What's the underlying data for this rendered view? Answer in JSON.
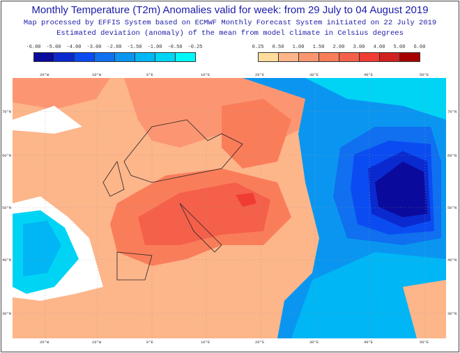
{
  "title": "Monthly Temperature (T2m) Anomalies valid for week: from 29 July to 04 August 2019",
  "subtitle1": "Map processed by EFFIS System based on ECMWF Monthly Forecast System initiated on 22 July 2019",
  "subtitle2": "Estimated deviation (anomaly) of the mean from model climate in Celsius degrees",
  "legend_negative": {
    "labels": [
      "-6.00",
      "-5.00",
      "-4.00",
      "-3.00",
      "-2.00",
      "-1.50",
      "-1.00",
      "-0.50",
      "-0.25"
    ],
    "colors": [
      "#0a0a9c",
      "#0a2ad0",
      "#0a4cf2",
      "#1070f0",
      "#0a96f0",
      "#00b6f5",
      "#00d4f5",
      "#00f8f8"
    ]
  },
  "legend_positive": {
    "labels": [
      "0.25",
      "0.50",
      "1.00",
      "1.50",
      "2.00",
      "3.00",
      "4.00",
      "5.00",
      "6.00"
    ],
    "colors": [
      "#fedc9e",
      "#fdb58a",
      "#fc9672",
      "#fa7d5a",
      "#f5604a",
      "#f03c32",
      "#d2201e",
      "#a80000"
    ]
  },
  "longitudes": [
    "20°W",
    "10°W",
    "0°E",
    "10°E",
    "20°E",
    "30°E",
    "40°E",
    "50°E"
  ],
  "latitudes": [
    "70°N",
    "60°N",
    "50°N",
    "40°N",
    "30°N"
  ]
}
